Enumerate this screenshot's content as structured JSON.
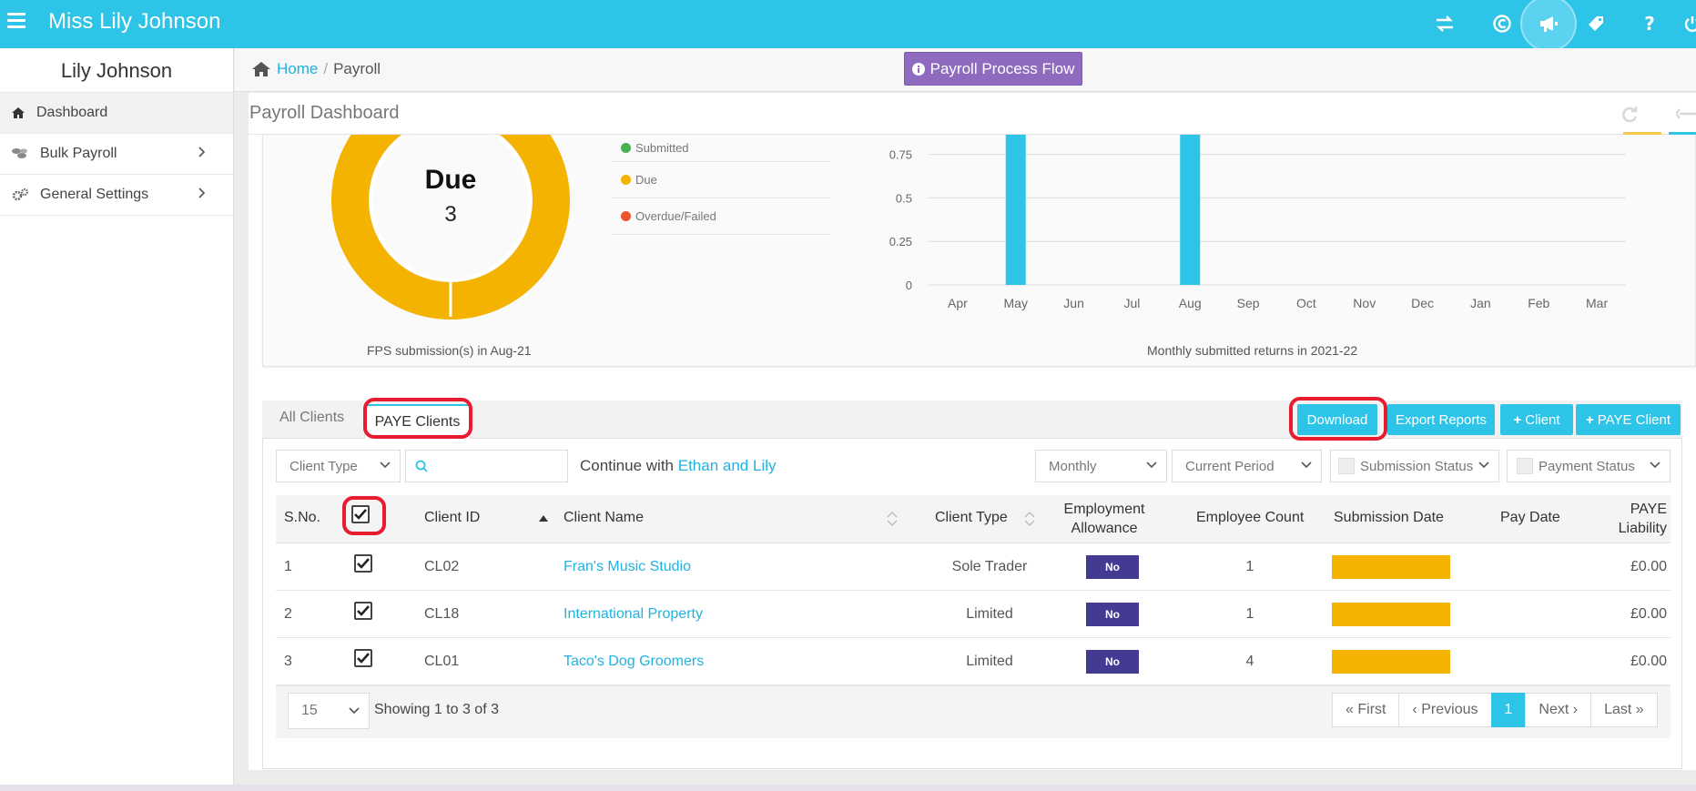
{
  "app": {
    "title": "Miss Lily Johnson"
  },
  "topbar_icons": [
    "transfer-icon",
    "copyright-icon",
    "megaphone-icon",
    "tag-icon",
    "help-icon",
    "power-icon"
  ],
  "sidebar": {
    "user": "Lily Johnson",
    "items": [
      {
        "label": "Dashboard",
        "icon": "home-icon"
      },
      {
        "label": "Bulk Payroll",
        "icon": "coins-icon"
      },
      {
        "label": "General Settings",
        "icon": "cogs-icon"
      }
    ]
  },
  "breadcrumb": {
    "home": "Home",
    "separator": "/",
    "current": "Payroll"
  },
  "process_flow_button": "Payroll Process Flow",
  "panel": {
    "title": "Payroll Dashboard"
  },
  "donut": {
    "center_label": "Due",
    "center_value": "3",
    "caption": "FPS submission(s) in Aug-21",
    "color": "#f3b300"
  },
  "legend": [
    {
      "label": "Submitted",
      "color": "#4caf50"
    },
    {
      "label": "Due",
      "color": "#f3b300"
    },
    {
      "label": "Overdue/Failed",
      "color": "#e8542f"
    }
  ],
  "chart_data": {
    "type": "bar",
    "title": "Monthly submitted returns in 2021-22",
    "categories": [
      "Apr",
      "May",
      "Jun",
      "Jul",
      "Aug",
      "Sep",
      "Oct",
      "Nov",
      "Dec",
      "Jan",
      "Feb",
      "Mar"
    ],
    "values": [
      0,
      1,
      0,
      0,
      1,
      0,
      0,
      0,
      0,
      0,
      0,
      0
    ],
    "y_ticks": [
      "0",
      "0.25",
      "0.5",
      "0.75"
    ],
    "ylim": [
      0,
      1
    ],
    "grid": true,
    "color": "#2ec4e8"
  },
  "tabs": {
    "all": "All Clients",
    "paye": "PAYE Clients"
  },
  "actions": {
    "download": "Download",
    "export": "Export Reports",
    "add_client": "Client",
    "add_paye_client": "PAYE Client"
  },
  "filters": {
    "client_type": "Client Type",
    "search_placeholder": "",
    "continue_prefix": "Continue with",
    "continue_link": "Ethan and Lily",
    "frequency": "Monthly",
    "period": "Current Period",
    "submission_status": "Submission Status",
    "payment_status": "Payment Status"
  },
  "table": {
    "headers": {
      "sno": "S.No.",
      "client_id": "Client ID",
      "client_name": "Client Name",
      "client_type": "Client Type",
      "employment_allowance_1": "Employment",
      "employment_allowance_2": "Allowance",
      "employee_count": "Employee Count",
      "submission_date": "Submission Date",
      "pay_date": "Pay Date",
      "paye_liability_1": "PAYE",
      "paye_liability_2": "Liability"
    },
    "rows": [
      {
        "sno": "1",
        "id": "CL02",
        "name": "Fran's Music Studio",
        "type": "Sole Trader",
        "ea": "No",
        "count": "1",
        "liability": "£0.00"
      },
      {
        "sno": "2",
        "id": "CL18",
        "name": "International Property",
        "type": "Limited",
        "ea": "No",
        "count": "1",
        "liability": "£0.00"
      },
      {
        "sno": "3",
        "id": "CL01",
        "name": "Taco's Dog Groomers",
        "type": "Limited",
        "ea": "No",
        "count": "4",
        "liability": "£0.00"
      }
    ]
  },
  "pagination": {
    "page_size": "15",
    "info": "Showing 1 to 3 of 3",
    "first": "First",
    "previous": "Previous",
    "current": "1",
    "next": "Next",
    "last": "Last"
  }
}
